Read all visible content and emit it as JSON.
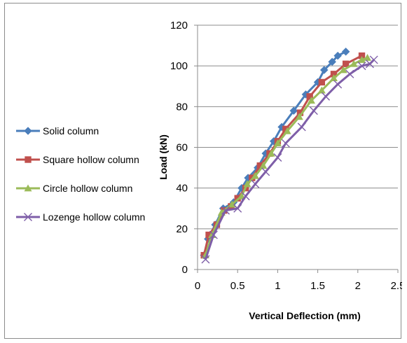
{
  "chart_data": {
    "type": "line",
    "title": "",
    "xlabel": "Vertical Deflection (mm)",
    "ylabel": "Load (kN)",
    "xlim": [
      0,
      2.5
    ],
    "ylim": [
      0,
      120
    ],
    "xticks": [
      "0",
      "0.5",
      "1",
      "1.5",
      "2",
      "2.5"
    ],
    "yticks": [
      "0",
      "20",
      "40",
      "60",
      "80",
      "100",
      "120"
    ],
    "grid": "horizontal",
    "legend_position": "left",
    "series": [
      {
        "name": "Solid column",
        "color": "#4A7EBB",
        "marker": "diamond",
        "points": [
          [
            0.08,
            7
          ],
          [
            0.13,
            15
          ],
          [
            0.22,
            22
          ],
          [
            0.32,
            30
          ],
          [
            0.45,
            33
          ],
          [
            0.55,
            40
          ],
          [
            0.63,
            45
          ],
          [
            0.75,
            50
          ],
          [
            0.85,
            57
          ],
          [
            0.95,
            63
          ],
          [
            1.05,
            70
          ],
          [
            1.2,
            78
          ],
          [
            1.35,
            86
          ],
          [
            1.5,
            92
          ],
          [
            1.58,
            98
          ],
          [
            1.68,
            102
          ],
          [
            1.75,
            105
          ],
          [
            1.85,
            107
          ]
        ]
      },
      {
        "name": "Square hollow column",
        "color": "#C0504D",
        "marker": "square",
        "points": [
          [
            0.08,
            7
          ],
          [
            0.14,
            17
          ],
          [
            0.24,
            22
          ],
          [
            0.33,
            29
          ],
          [
            0.42,
            31
          ],
          [
            0.5,
            35
          ],
          [
            0.6,
            40
          ],
          [
            0.68,
            45
          ],
          [
            0.78,
            51
          ],
          [
            0.9,
            57
          ],
          [
            1.0,
            63
          ],
          [
            1.1,
            69
          ],
          [
            1.28,
            77
          ],
          [
            1.4,
            85
          ],
          [
            1.55,
            92
          ],
          [
            1.7,
            96
          ],
          [
            1.85,
            101
          ],
          [
            2.05,
            105
          ]
        ]
      },
      {
        "name": "Circle hollow column",
        "color": "#9BBB59",
        "marker": "triangle",
        "points": [
          [
            0.1,
            7
          ],
          [
            0.18,
            17
          ],
          [
            0.3,
            28
          ],
          [
            0.43,
            32
          ],
          [
            0.55,
            36
          ],
          [
            0.62,
            42
          ],
          [
            0.72,
            46
          ],
          [
            0.82,
            51
          ],
          [
            0.92,
            57
          ],
          [
            1.0,
            62
          ],
          [
            1.12,
            68
          ],
          [
            1.27,
            75
          ],
          [
            1.42,
            83
          ],
          [
            1.55,
            88
          ],
          [
            1.7,
            94
          ],
          [
            1.82,
            98
          ],
          [
            1.95,
            101
          ],
          [
            2.05,
            103
          ],
          [
            2.12,
            104
          ]
        ]
      },
      {
        "name": "Lozenge hollow column",
        "color": "#7E5EA8",
        "marker": "x",
        "points": [
          [
            0.1,
            5
          ],
          [
            0.2,
            17
          ],
          [
            0.35,
            29
          ],
          [
            0.5,
            30
          ],
          [
            0.6,
            36
          ],
          [
            0.72,
            42
          ],
          [
            0.85,
            48
          ],
          [
            1.0,
            55
          ],
          [
            1.1,
            62
          ],
          [
            1.3,
            70
          ],
          [
            1.45,
            78
          ],
          [
            1.6,
            85
          ],
          [
            1.75,
            91
          ],
          [
            1.9,
            96
          ],
          [
            2.05,
            100
          ],
          [
            2.15,
            101
          ],
          [
            2.2,
            103
          ]
        ]
      }
    ]
  }
}
